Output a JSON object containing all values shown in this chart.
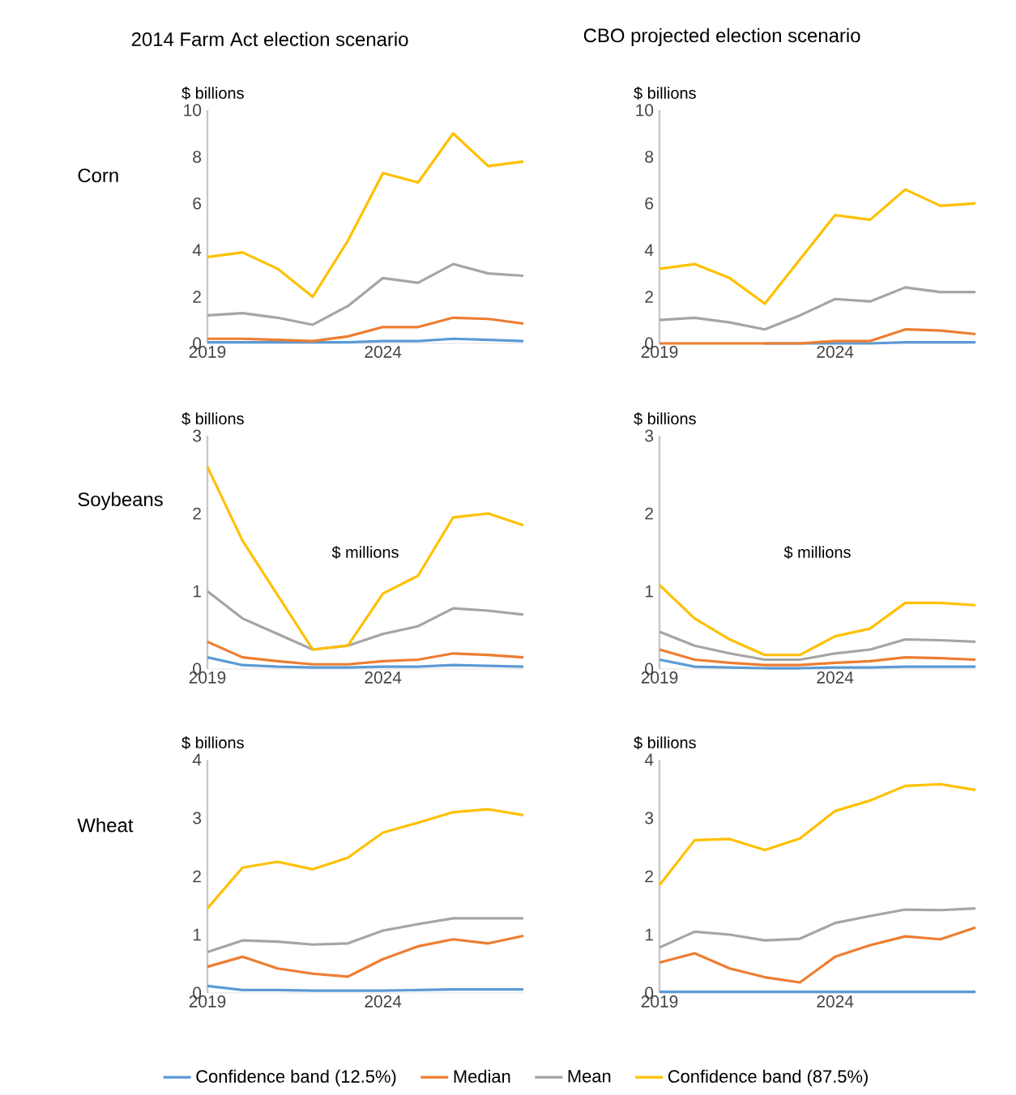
{
  "chart_data": [
    {
      "type": "line",
      "title": "2014 Farm Act election scenario",
      "subtitle": "Corn",
      "ylabel": "$ billions",
      "x": [
        2019,
        2020,
        2021,
        2022,
        2023,
        2024,
        2025,
        2026,
        2027,
        2028
      ],
      "xlim": [
        2019,
        2028
      ],
      "xticks": [
        2019,
        2024
      ],
      "ylim": [
        0,
        10
      ],
      "yticks": [
        0,
        2,
        4,
        6,
        8,
        10
      ],
      "series": [
        {
          "color": "#5b9bd5",
          "values": [
            0.05,
            0.05,
            0.05,
            0.05,
            0.05,
            0.1,
            0.1,
            0.2,
            0.15,
            0.1
          ]
        },
        {
          "color": "#ed7d31",
          "values": [
            0.2,
            0.2,
            0.15,
            0.1,
            0.3,
            0.7,
            0.7,
            1.1,
            1.05,
            0.85
          ]
        },
        {
          "color": "#a5a5a5",
          "values": [
            1.2,
            1.3,
            1.1,
            0.8,
            1.6,
            2.8,
            2.6,
            3.4,
            3.0,
            2.9
          ]
        },
        {
          "color": "#ffc000",
          "values": [
            3.7,
            3.9,
            3.2,
            2.0,
            4.4,
            7.3,
            6.9,
            9.0,
            7.6,
            7.8
          ]
        }
      ]
    },
    {
      "type": "line",
      "title": "CBO projected election scenario",
      "ylabel": "$ billions",
      "x": [
        2019,
        2020,
        2021,
        2022,
        2023,
        2024,
        2025,
        2026,
        2027,
        2028
      ],
      "xlim": [
        2019,
        2028
      ],
      "xticks": [
        2019,
        2024
      ],
      "ylim": [
        0,
        10
      ],
      "yticks": [
        0,
        2,
        4,
        6,
        8,
        10
      ],
      "series": [
        {
          "color": "#5b9bd5",
          "values": [
            null,
            null,
            null,
            0,
            0,
            0,
            0,
            0.05,
            0.05,
            0.05
          ]
        },
        {
          "color": "#ed7d31",
          "values": [
            0,
            0,
            0,
            0,
            0,
            0.1,
            0.1,
            0.6,
            0.55,
            0.4
          ]
        },
        {
          "color": "#a5a5a5",
          "values": [
            1.0,
            1.1,
            0.9,
            0.6,
            1.2,
            1.9,
            1.8,
            2.4,
            2.2,
            2.2
          ]
        },
        {
          "color": "#ffc000",
          "values": [
            3.2,
            3.4,
            2.8,
            1.7,
            3.6,
            5.5,
            5.3,
            6.6,
            5.9,
            6.0
          ]
        }
      ]
    },
    {
      "type": "line",
      "subtitle": "Soybeans",
      "ylabel": "$ billions",
      "annotations": [
        "$ millions"
      ],
      "x": [
        2019,
        2020,
        2021,
        2022,
        2023,
        2024,
        2025,
        2026,
        2027,
        2028
      ],
      "xlim": [
        2019,
        2028
      ],
      "xticks": [
        2019,
        2024
      ],
      "ylim": [
        0,
        3
      ],
      "yticks": [
        0,
        1,
        2,
        3
      ],
      "series": [
        {
          "color": "#5b9bd5",
          "values": [
            0.15,
            0.05,
            0.03,
            0.02,
            0.02,
            0.03,
            0.03,
            0.05,
            0.04,
            0.03
          ]
        },
        {
          "color": "#ed7d31",
          "values": [
            0.35,
            0.15,
            0.1,
            0.06,
            0.06,
            0.1,
            0.12,
            0.2,
            0.18,
            0.15
          ]
        },
        {
          "color": "#a5a5a5",
          "values": [
            1.0,
            0.65,
            0.45,
            0.25,
            0.3,
            0.45,
            0.55,
            0.78,
            0.75,
            0.7
          ]
        },
        {
          "color": "#ffc000",
          "values": [
            2.6,
            1.65,
            0.95,
            0.25,
            0.3,
            0.97,
            1.2,
            1.95,
            2.0,
            1.85
          ]
        }
      ]
    },
    {
      "type": "line",
      "ylabel": "$ billions",
      "annotations": [
        "$ millions"
      ],
      "x": [
        2019,
        2020,
        2021,
        2022,
        2023,
        2024,
        2025,
        2026,
        2027,
        2028
      ],
      "xlim": [
        2019,
        2028
      ],
      "xticks": [
        2019,
        2024
      ],
      "ylim": [
        0,
        3
      ],
      "yticks": [
        0,
        1,
        2,
        3
      ],
      "series": [
        {
          "color": "#5b9bd5",
          "values": [
            0.12,
            0.03,
            0.02,
            0.01,
            0.01,
            0.02,
            0.02,
            0.03,
            0.03,
            0.03
          ]
        },
        {
          "color": "#ed7d31",
          "values": [
            0.25,
            0.12,
            0.08,
            0.05,
            0.05,
            0.08,
            0.1,
            0.15,
            0.14,
            0.12
          ]
        },
        {
          "color": "#a5a5a5",
          "values": [
            0.48,
            0.3,
            0.2,
            0.12,
            0.12,
            0.2,
            0.25,
            0.38,
            0.37,
            0.35
          ]
        },
        {
          "color": "#ffc000",
          "values": [
            1.08,
            0.65,
            0.38,
            0.18,
            0.18,
            0.42,
            0.52,
            0.85,
            0.85,
            0.82
          ]
        }
      ]
    },
    {
      "type": "line",
      "subtitle": "Wheat",
      "ylabel": "$ billions",
      "legend": "bottom",
      "x": [
        2019,
        2020,
        2021,
        2022,
        2023,
        2024,
        2025,
        2026,
        2027,
        2028
      ],
      "xlim": [
        2019,
        2028
      ],
      "xticks": [
        2019,
        2024
      ],
      "ylim": [
        0,
        4
      ],
      "yticks": [
        0,
        1,
        2,
        3,
        4
      ],
      "series": [
        {
          "name": "Confidence band (12.5%)",
          "color": "#5b9bd5",
          "values": [
            0.12,
            0.05,
            0.05,
            0.04,
            0.04,
            0.04,
            0.05,
            0.06,
            0.06,
            0.06
          ]
        },
        {
          "name": "Median",
          "color": "#ed7d31",
          "values": [
            0.45,
            0.62,
            0.42,
            0.33,
            0.28,
            0.58,
            0.8,
            0.92,
            0.85,
            0.98
          ]
        },
        {
          "name": "Mean",
          "color": "#a5a5a5",
          "values": [
            0.7,
            0.9,
            0.88,
            0.83,
            0.85,
            1.07,
            1.18,
            1.28,
            1.28,
            1.28
          ]
        },
        {
          "name": "Confidence band (87.5%)",
          "color": "#ffc000",
          "values": [
            1.45,
            2.15,
            2.25,
            2.12,
            2.32,
            2.75,
            2.92,
            3.1,
            3.15,
            3.05
          ]
        }
      ]
    },
    {
      "type": "line",
      "ylabel": "$ billions",
      "x": [
        2019,
        2020,
        2021,
        2022,
        2023,
        2024,
        2025,
        2026,
        2027,
        2028
      ],
      "xlim": [
        2019,
        2028
      ],
      "xticks": [
        2019,
        2024
      ],
      "ylim": [
        0,
        4
      ],
      "yticks": [
        0,
        1,
        2,
        3,
        4
      ],
      "series": [
        {
          "color": "#5b9bd5",
          "values": [
            0.02,
            0.02,
            0.02,
            0.02,
            0.02,
            0.02,
            0.02,
            0.02,
            0.02,
            0.02
          ]
        },
        {
          "color": "#ed7d31",
          "values": [
            0.52,
            0.68,
            0.42,
            0.27,
            0.18,
            0.62,
            0.82,
            0.97,
            0.92,
            1.12
          ]
        },
        {
          "color": "#a5a5a5",
          "values": [
            0.78,
            1.05,
            1.0,
            0.9,
            0.93,
            1.2,
            1.32,
            1.43,
            1.42,
            1.45
          ]
        },
        {
          "color": "#ffc000",
          "values": [
            1.85,
            2.62,
            2.64,
            2.45,
            2.65,
            3.12,
            3.3,
            3.55,
            3.58,
            3.48
          ]
        }
      ]
    }
  ]
}
